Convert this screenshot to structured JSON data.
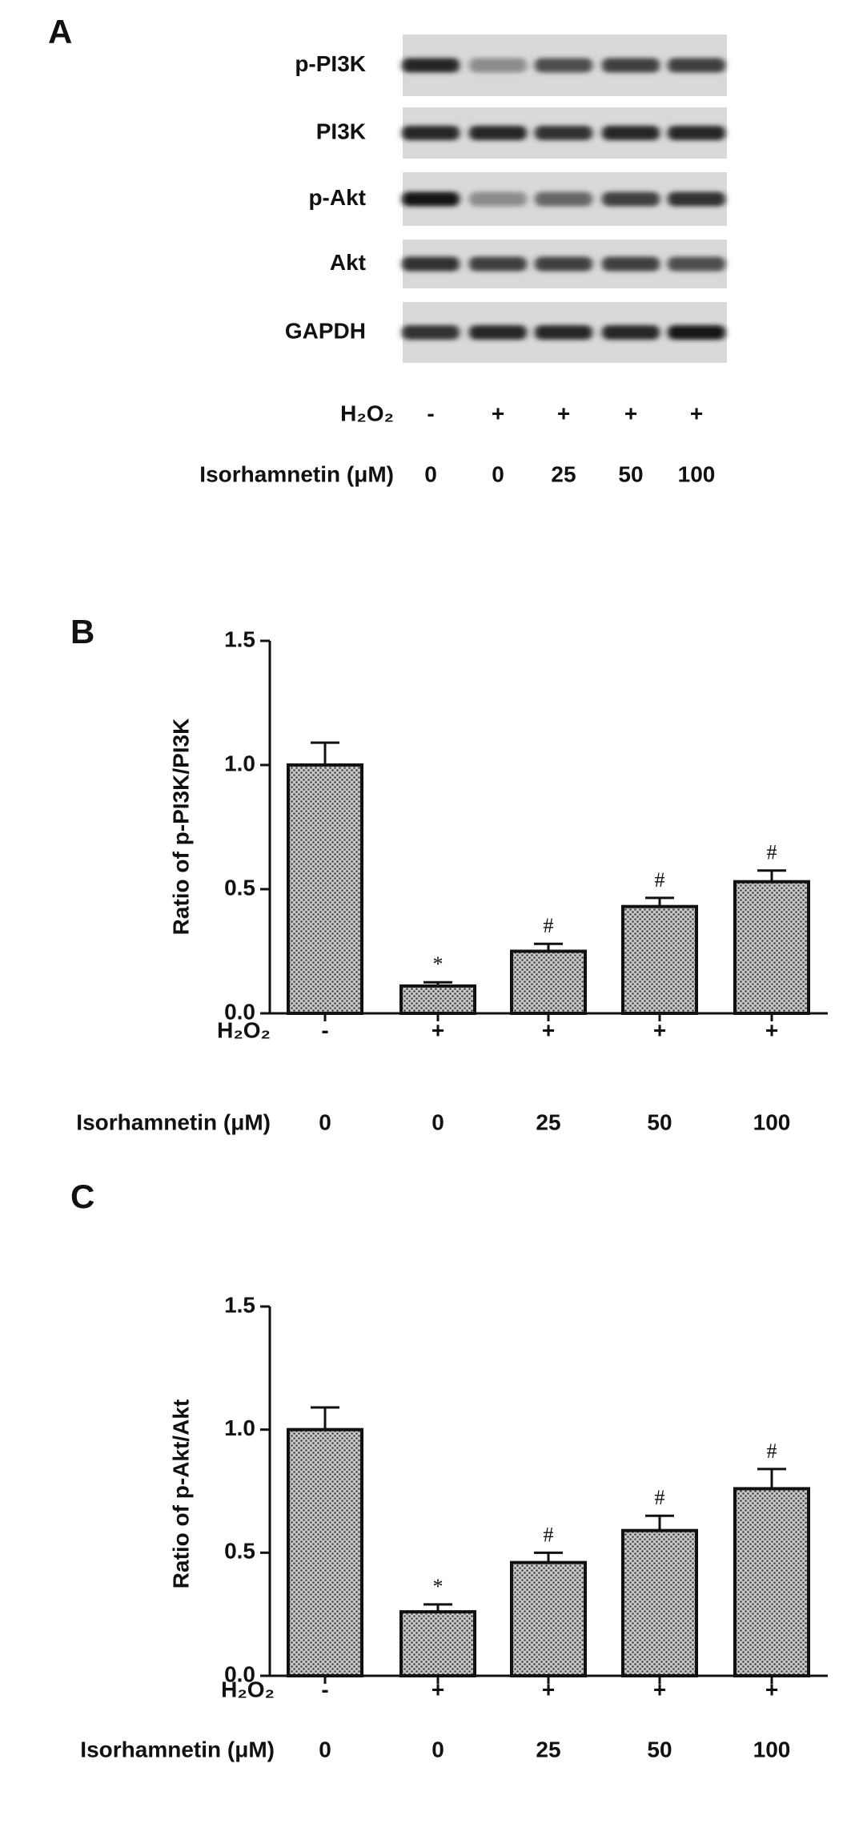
{
  "panel_a": {
    "label": "A",
    "rows": [
      "p-PI3K",
      "PI3K",
      "p-Akt",
      "Akt",
      "GAPDH"
    ],
    "conditions": [
      {
        "label": "H₂O₂",
        "values": [
          "-",
          "+",
          "+",
          "+",
          "+"
        ]
      },
      {
        "label": "Isorhamnetin (μM)",
        "values": [
          0,
          0,
          25,
          50,
          100
        ]
      }
    ]
  },
  "chart_data": [
    {
      "type": "bar",
      "panel_label": "B",
      "ylabel": "Ratio of p-PI3K/PI3K",
      "values": [
        1.0,
        0.11,
        0.25,
        0.43,
        0.53
      ],
      "errors": [
        0.09,
        0.015,
        0.03,
        0.035,
        0.045
      ],
      "markers": [
        null,
        "*",
        "#",
        "#",
        "#"
      ],
      "color": "#c8c8c8",
      "ylim": [
        0,
        1.5
      ],
      "yticks": [
        {
          "value": 0,
          "label": "0.0"
        },
        {
          "value": 0.5,
          "label": "0.5"
        },
        {
          "value": 1,
          "label": "1.0"
        },
        {
          "value": 1.5,
          "label": "1.5"
        }
      ],
      "conditions": [
        {
          "label": "H₂O₂",
          "values": [
            "-",
            "+",
            "+",
            "+",
            "+"
          ]
        },
        {
          "label": "Isorhamnetin (μM)",
          "values": [
            0,
            0,
            25,
            50,
            100
          ]
        }
      ]
    },
    {
      "type": "bar",
      "panel_label": "C",
      "ylabel": "Ratio of p-Akt/Akt",
      "values": [
        1.0,
        0.26,
        0.46,
        0.59,
        0.76
      ],
      "errors": [
        0.09,
        0.03,
        0.04,
        0.06,
        0.08
      ],
      "markers": [
        null,
        "*",
        "#",
        "#",
        "#"
      ],
      "color": "#c8c8c8",
      "ylim": [
        0,
        1.5
      ],
      "yticks": [
        {
          "value": 0,
          "label": "0.0"
        },
        {
          "value": 0.5,
          "label": "0.5"
        },
        {
          "value": 1,
          "label": "1.0"
        },
        {
          "value": 1.5,
          "label": "1.5"
        }
      ],
      "conditions": [
        {
          "label": "H₂O₂",
          "values": [
            "-",
            "+",
            "+",
            "+",
            "+"
          ]
        },
        {
          "label": "Isorhamnetin (μM)",
          "values": [
            0,
            0,
            25,
            50,
            100
          ]
        }
      ]
    }
  ]
}
